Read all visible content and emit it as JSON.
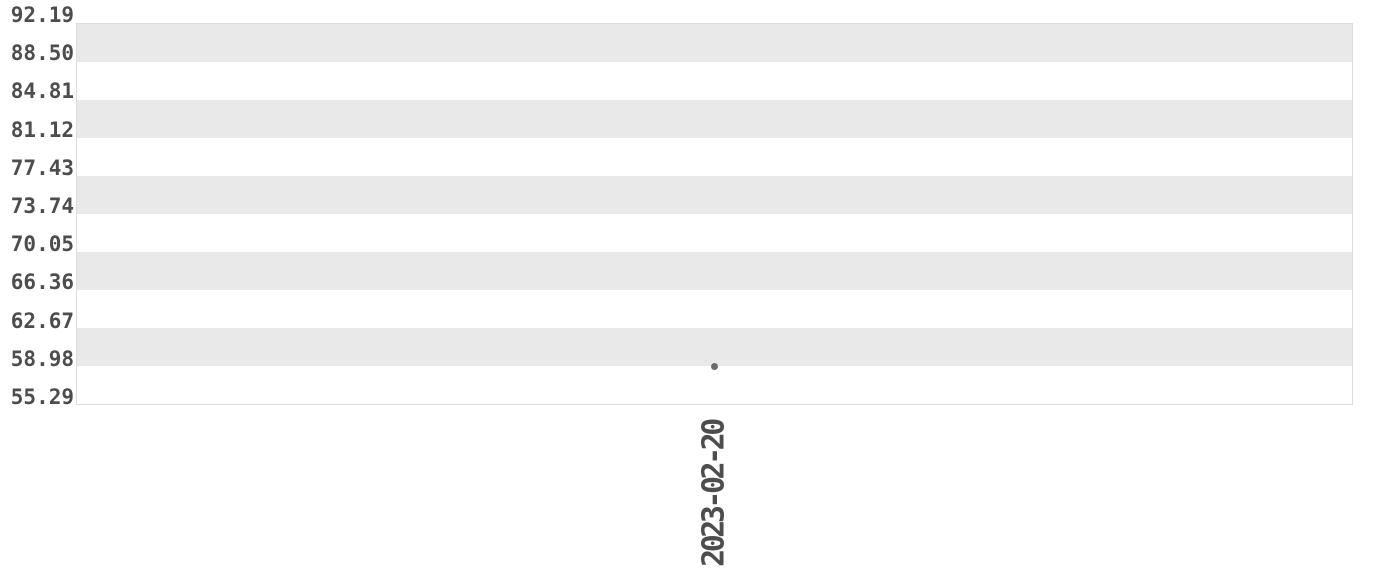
{
  "chart": {
    "background_color": "#ffffff",
    "band_color": "#e9e9e9",
    "band_alt_color": "#ffffff",
    "plot_border_color": "#dcdcdc",
    "tick_text_color": "#4d4d4d",
    "point_color": "#6b6b6b"
  },
  "chart_data": {
    "type": "scatter",
    "title": "",
    "xlabel": "",
    "ylabel": "",
    "x": [
      "2023-02-20"
    ],
    "y": [
      58.98
    ],
    "x_tick_labels": [
      "2023-02-20"
    ],
    "y_tick_labels": [
      "92.19",
      "88.50",
      "84.81",
      "81.12",
      "77.43",
      "73.74",
      "70.05",
      "66.36",
      "62.67",
      "58.98",
      "55.29"
    ],
    "ylim": [
      55.29,
      92.19
    ],
    "y_tick_step": 3.69,
    "grid": "alternating horizontal bands, no gridlines",
    "legend": "none",
    "x_tick_rotation_degrees": 90
  }
}
